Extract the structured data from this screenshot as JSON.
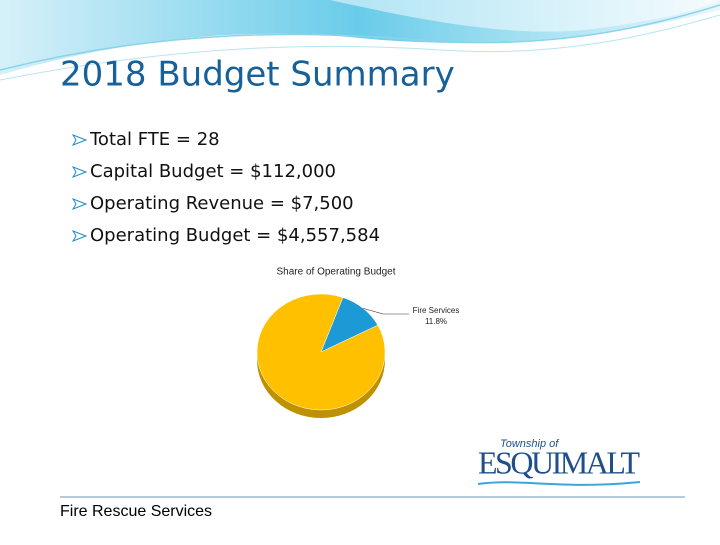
{
  "slide": {
    "title": "2018 Budget Summary",
    "bullets": [
      "Total FTE = 28",
      "Capital Budget = $112,000",
      "Operating Revenue = $7,500",
      "Operating Budget = $4,557,584"
    ],
    "footer": "Fire Rescue Services",
    "logo": {
      "small": "Township of",
      "large": "ESQUIMALT"
    }
  },
  "chart_data": {
    "type": "pie",
    "title": "Share of Operating Budget",
    "categories": [
      "Fire Services",
      null
    ],
    "values": [
      11.8,
      88.2
    ],
    "value_labels": [
      "11.8%",
      null
    ],
    "colors": [
      "#1c9ad6",
      "#ffc000"
    ]
  }
}
